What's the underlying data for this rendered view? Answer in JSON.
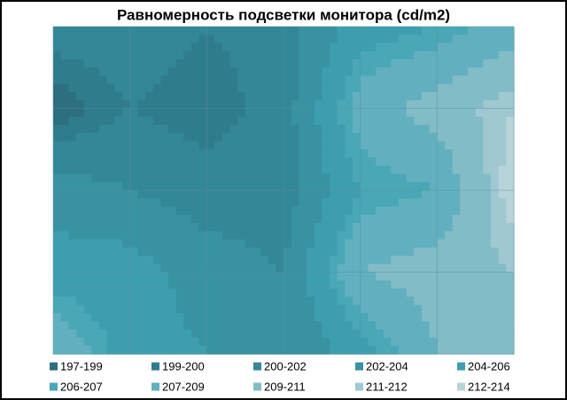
{
  "chart_data": {
    "type": "contour",
    "title": "Равномерность  подсветки монитора (cd/m2)",
    "z": [
      [
        201,
        201,
        200,
        201,
        205,
        206,
        208
      ],
      [
        198,
        200,
        199,
        201,
        208,
        210,
        212
      ],
      [
        203,
        202,
        201,
        201,
        206,
        207,
        213
      ],
      [
        205,
        205,
        203,
        202,
        209,
        210,
        211
      ],
      [
        209,
        205,
        204,
        202,
        205,
        209,
        211
      ]
    ],
    "grid": true,
    "bands": [
      {
        "label": "197-199",
        "from": 197,
        "to": 199,
        "color": "#2c6f7f"
      },
      {
        "label": "199-200",
        "from": 199,
        "to": 200,
        "color": "#2f7c8c"
      },
      {
        "label": "200-202",
        "from": 200,
        "to": 202,
        "color": "#338797"
      },
      {
        "label": "202-204",
        "from": 202,
        "to": 204,
        "color": "#3892a2"
      },
      {
        "label": "204-206",
        "from": 204,
        "to": 206,
        "color": "#3d9eb0"
      },
      {
        "label": "206-207",
        "from": 206,
        "to": 207,
        "color": "#49a7b7"
      },
      {
        "label": "207-209",
        "from": 207,
        "to": 209,
        "color": "#62b0bf"
      },
      {
        "label": "209-211",
        "from": 209,
        "to": 211,
        "color": "#82bcc7"
      },
      {
        "label": "211-212",
        "from": 211,
        "to": 212,
        "color": "#9fc8d0"
      },
      {
        "label": "212-214",
        "from": 212,
        "to": 214,
        "color": "#b7d4da"
      }
    ]
  }
}
